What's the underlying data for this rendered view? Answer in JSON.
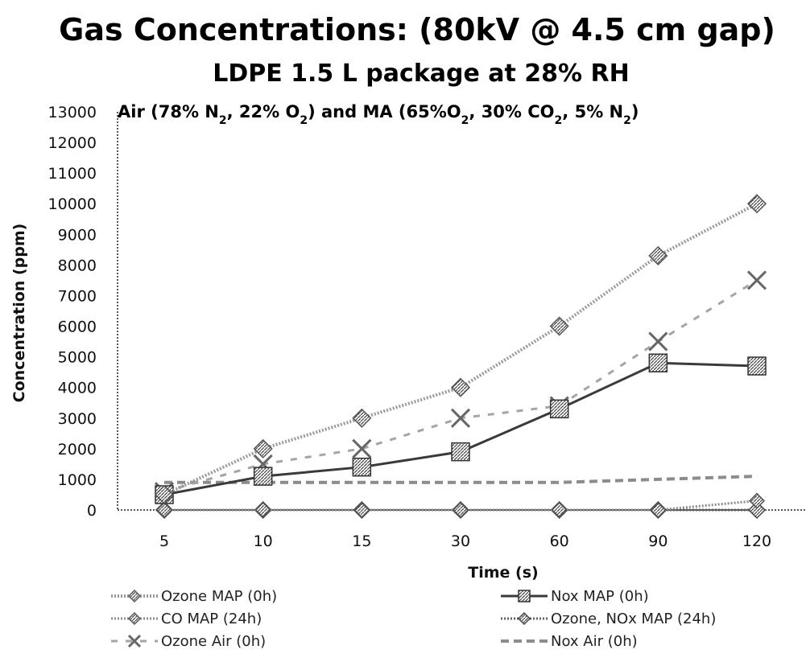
{
  "chart_data": {
    "type": "line",
    "title": "Gas Concentrations:  (80kV @ 4.5 cm gap)",
    "subtitle": "LDPE 1.5 L package at 28% RH",
    "annotation": {
      "prefix": "Air (78% N",
      "s1": "2",
      "mid1": ", 22% O",
      "s2": "2",
      "mid2": ") and MA (65%O",
      "s3": "2",
      "mid3": ", 30% CO",
      "s4": "2",
      "mid4": ", 5% N",
      "s5": "2",
      "suffix": ")"
    },
    "xlabel": "Time (s)",
    "ylabel": "Concentration (ppm)",
    "categories": [
      "5",
      "10",
      "15",
      "30",
      "60",
      "90",
      "120"
    ],
    "ylim": [
      0,
      13000
    ],
    "yticks": [
      "0",
      "1000",
      "2000",
      "3000",
      "4000",
      "5000",
      "6000",
      "7000",
      "8000",
      "9000",
      "10000",
      "11000",
      "12000",
      "13000"
    ],
    "grid": false,
    "legend_position": "bottom",
    "series": [
      {
        "name": "Ozone MAP (0h)",
        "values": [
          500,
          2000,
          3000,
          4000,
          6000,
          8300,
          10000
        ]
      },
      {
        "name": "Nox MAP (0h)",
        "values": [
          500,
          1100,
          1400,
          1900,
          3300,
          4800,
          4700
        ]
      },
      {
        "name": "CO MAP (24h)",
        "values": [
          0,
          0,
          0,
          0,
          0,
          0,
          300
        ]
      },
      {
        "name": "Ozone, NOx MAP (24h)",
        "values": [
          0,
          0,
          0,
          0,
          0,
          0,
          0
        ]
      },
      {
        "name": "Ozone Air (0h)",
        "values": [
          600,
          1500,
          2000,
          3000,
          3400,
          5500,
          7500
        ]
      },
      {
        "name": "Nox Air (0h)",
        "values": [
          900,
          900,
          900,
          900,
          900,
          1000,
          1100
        ]
      }
    ],
    "colors": {
      "ozone_map": "#9a9a9a",
      "nox_map": "#3a3a3a",
      "co_map": "#8a8a8a",
      "ozone_nox_24h": "#5f5f5f",
      "ozone_air": "#a5a5a5",
      "nox_air": "#8c8c8c",
      "axis": "#222222"
    }
  }
}
